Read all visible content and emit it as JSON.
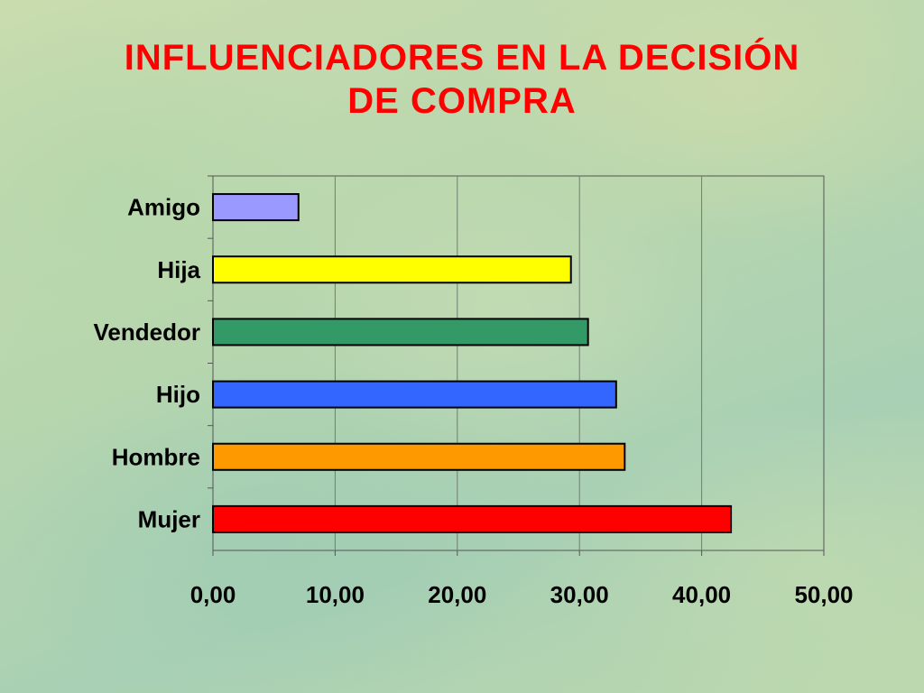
{
  "slide": {
    "title_line1": "INFLUENCIADORES EN LA DECISIÓN",
    "title_line2": "DE COMPRA"
  },
  "chart_data": {
    "type": "bar",
    "orientation": "horizontal",
    "title": "INFLUENCIADORES EN LA DECISIÓN DE COMPRA",
    "xlabel": "",
    "ylabel": "",
    "categories": [
      "Amigo",
      "Hija",
      "Vendedor",
      "Hijo",
      "Hombre",
      "Mujer"
    ],
    "values": [
      7.0,
      29.3,
      30.7,
      33.0,
      33.7,
      42.4
    ],
    "bar_colors": [
      "#9999ff",
      "#ffff00",
      "#339966",
      "#3366ff",
      "#ff9900",
      "#ff0000"
    ],
    "xlim": [
      0,
      50
    ],
    "ticks": [
      "0,00",
      "10,00",
      "20,00",
      "30,00",
      "40,00",
      "50,00"
    ],
    "grid": "vertical",
    "legend": "none"
  }
}
